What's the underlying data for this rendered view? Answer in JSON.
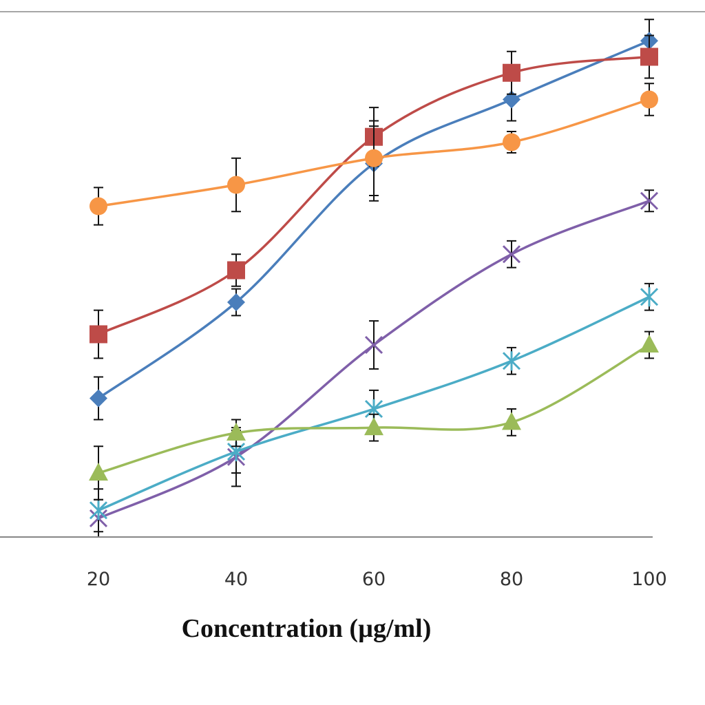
{
  "chart_data": {
    "type": "line",
    "title": "",
    "xlabel": "Concentration  (µg/ml)",
    "ylabel": "",
    "x": [
      20,
      40,
      60,
      80,
      100
    ],
    "ylim": [
      0,
      100
    ],
    "grid": false,
    "series": [
      {
        "marker": "diamond",
        "color": "#4a7ebb",
        "values": [
          26,
          44,
          70,
          82,
          93
        ],
        "errors": [
          4,
          2.5,
          7,
          4,
          4
        ]
      },
      {
        "marker": "square",
        "color": "#be4b48",
        "values": [
          38,
          50,
          75,
          87,
          90
        ],
        "errors": [
          4.5,
          3,
          5.5,
          4,
          4
        ]
      },
      {
        "marker": "circle",
        "color": "#f79646",
        "values": [
          62,
          66,
          71,
          74,
          82
        ],
        "errors": [
          3.5,
          5,
          7,
          2,
          3
        ]
      },
      {
        "marker": "x",
        "color": "#7f5fa9",
        "values": [
          3.5,
          15,
          36,
          53,
          63
        ],
        "errors": [
          3.5,
          5.5,
          4.5,
          2.5,
          2
        ]
      },
      {
        "marker": "star",
        "color": "#4bacc6",
        "values": [
          5,
          16,
          24,
          33,
          45
        ],
        "errors": [
          4,
          4,
          3.5,
          2.5,
          2.5
        ]
      },
      {
        "marker": "triangle",
        "color": "#9bbb59",
        "values": [
          12,
          19.5,
          20.5,
          21.5,
          36
        ],
        "errors": [
          5,
          2.5,
          2.5,
          2.5,
          2.5
        ]
      }
    ]
  }
}
